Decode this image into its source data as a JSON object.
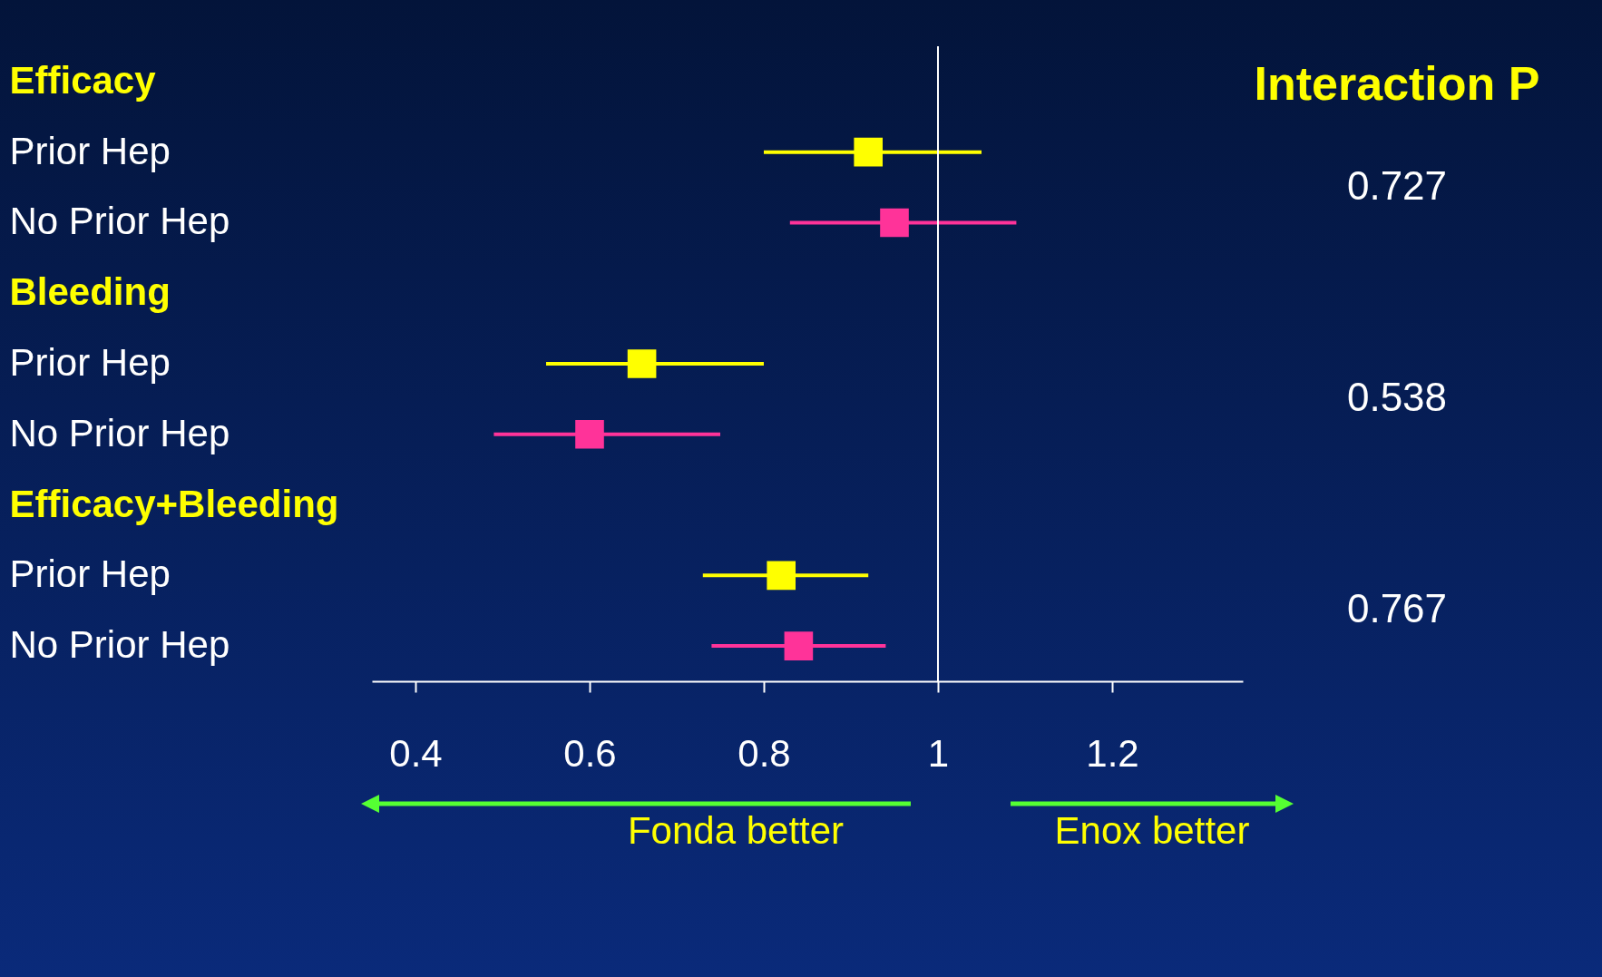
{
  "chart_data": {
    "type": "scatter",
    "orientation": "horizontal",
    "marker": "square",
    "categories": [
      "Efficacy",
      "Prior Hep",
      "No Prior Hep",
      "Bleeding",
      "Prior Hep",
      "No Prior Hep",
      "Efficacy+Bleeding",
      "Prior Hep",
      "No Prior Hep"
    ],
    "series": [
      {
        "color": "#ffff00",
        "values": [
          null,
          0.92,
          null,
          null,
          0.66,
          null,
          null,
          0.82,
          null
        ],
        "errors": [
          null,
          [
            0.8,
            1.05
          ],
          null,
          null,
          [
            0.55,
            0.8
          ],
          null,
          null,
          [
            0.73,
            0.92
          ],
          null
        ]
      },
      {
        "color": "#ff3399",
        "values": [
          null,
          null,
          0.95,
          null,
          null,
          0.6,
          null,
          null,
          0.84
        ],
        "errors": [
          null,
          null,
          [
            0.83,
            1.09
          ],
          null,
          null,
          [
            0.49,
            0.75
          ],
          null,
          null,
          [
            0.74,
            0.94
          ]
        ]
      }
    ],
    "xlim": [
      0.35,
      1.35
    ],
    "xticks": [
      0.4,
      0.6,
      0.8,
      1,
      1.2
    ],
    "ref_lines": [
      {
        "axis": "x",
        "value": 1,
        "color": "#ffffff"
      }
    ],
    "annotations": [
      "Interaction P",
      "0.727",
      "0.538",
      "0.767",
      "Fonda better",
      "Enox better"
    ]
  }
}
